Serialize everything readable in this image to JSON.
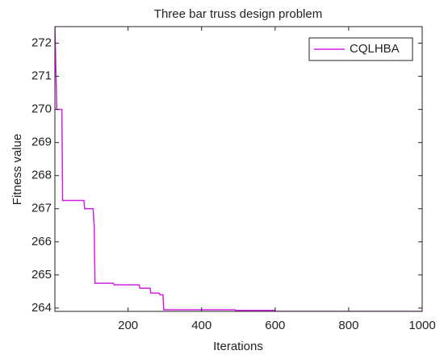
{
  "chart_data": {
    "type": "line",
    "title": "Three bar truss design problem",
    "x_label": "Iterations",
    "y_label": "Fitness value",
    "x": [
      1,
      5,
      6,
      8,
      20,
      22,
      80,
      82,
      105,
      107,
      108,
      110,
      160,
      162,
      230,
      232,
      260,
      262,
      285,
      287,
      295,
      297,
      490,
      492,
      600,
      602,
      1000
    ],
    "series": [
      {
        "name": "CQLHBA",
        "color": "#d020e0",
        "values": [
          272.5,
          270.6,
          270.0,
          270.0,
          270.0,
          267.25,
          267.25,
          267.0,
          267.0,
          266.6,
          266.5,
          264.75,
          264.75,
          264.7,
          264.7,
          264.6,
          264.6,
          264.45,
          264.45,
          264.4,
          264.4,
          263.95,
          263.95,
          263.93,
          263.93,
          263.9,
          263.9
        ]
      }
    ],
    "xlim": [
      1,
      1000
    ],
    "ylim": [
      263.9,
      272.5
    ],
    "xticks": [
      200,
      400,
      600,
      800,
      1000
    ],
    "yticks": [
      264,
      265,
      266,
      267,
      268,
      269,
      270,
      271,
      272
    ],
    "legend": "northeast"
  }
}
